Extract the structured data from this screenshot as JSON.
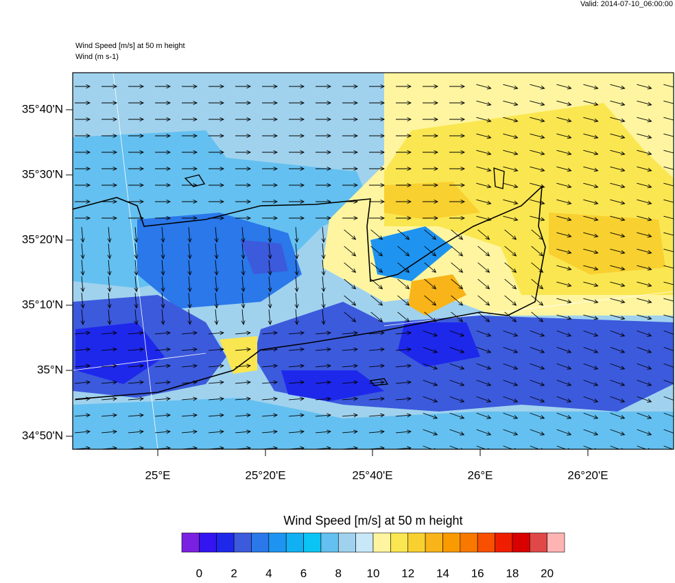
{
  "header": {
    "valid": "Valid: 2014-07-10_06:00:00",
    "title": "Wind Speed [m/s] at 50 m height",
    "subtitle": "Wind   (m s-1)"
  },
  "map": {
    "lat_labels": [
      "35°40'N",
      "35°30'N",
      "35°20'N",
      "35°10'N",
      "35°N",
      "34°50'N"
    ],
    "lon_labels": [
      "25°E",
      "25°20'E",
      "25°40'E",
      "26°E",
      "26°20'E"
    ]
  },
  "colorbar": {
    "title": "Wind Speed [m/s] at 50 m height",
    "colors": [
      "#7a20e0",
      "#3414f0",
      "#1e28eb",
      "#3c5adc",
      "#2a78ea",
      "#1e94f0",
      "#10b0f2",
      "#0ac4f4",
      "#64c0f0",
      "#a0d2ee",
      "#c8e8f8",
      "#fff5a0",
      "#fae650",
      "#f8d030",
      "#f8b418",
      "#f89a00",
      "#f87800",
      "#f85000",
      "#f01e00",
      "#d80000",
      "#e04848",
      "#ffb4b4"
    ],
    "ticks": [
      0,
      2,
      4,
      6,
      8,
      10,
      12,
      14,
      16,
      18,
      20
    ]
  }
}
